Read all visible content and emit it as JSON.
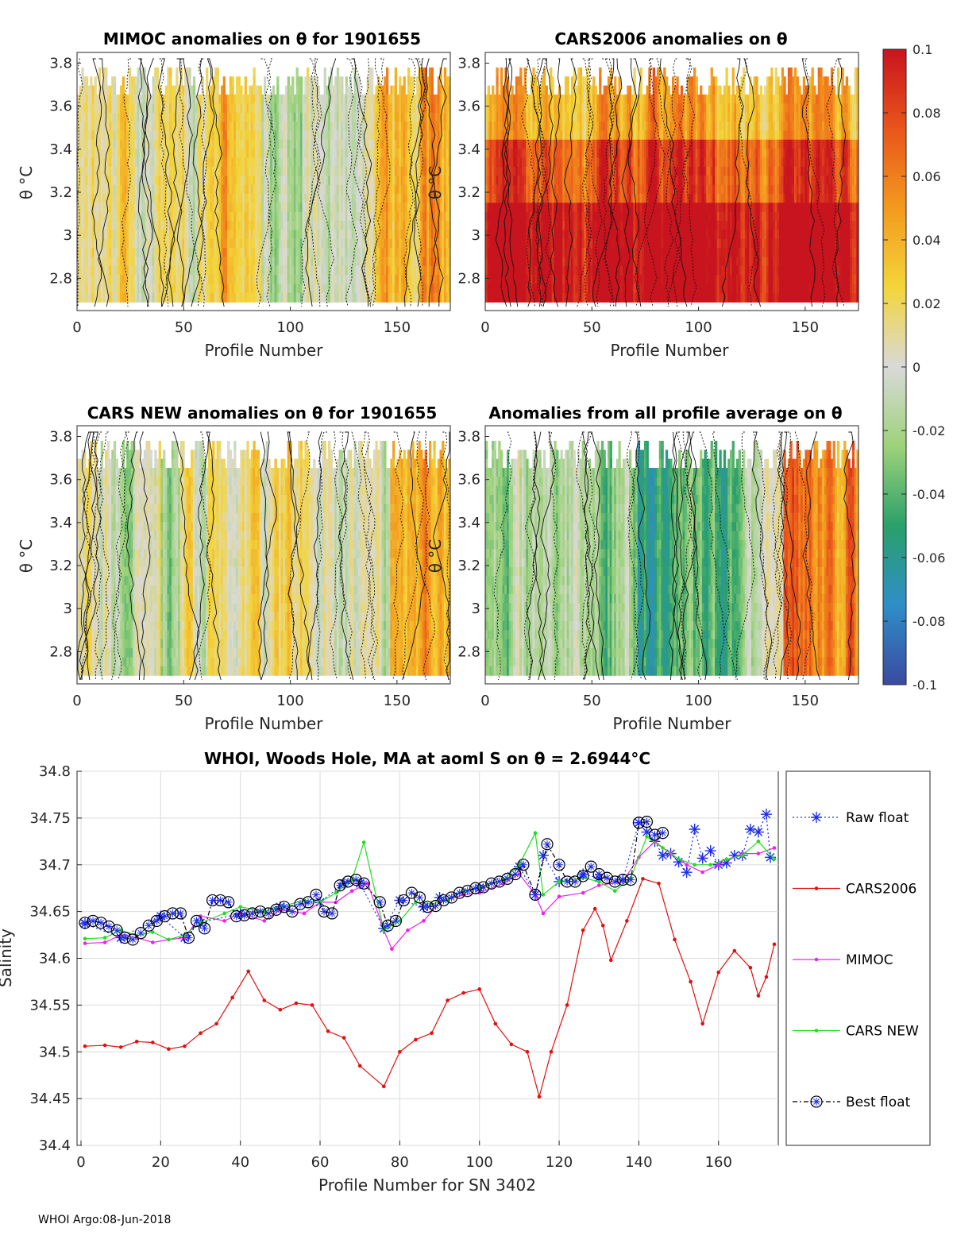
{
  "footer": "WHOI Argo:08-Jun-2018",
  "panels": [
    {
      "id": "mimoc",
      "title": "MIMOC anomalies on θ  for 1901655",
      "xlabel": "Profile Number",
      "ylabel": "θ °C",
      "bias": 0.01,
      "seed": 11
    },
    {
      "id": "cars2006",
      "title": "CARS2006 anomalies on θ",
      "xlabel": "Profile Number",
      "ylabel": "θ °C",
      "bias": 0.06,
      "seed": 23
    },
    {
      "id": "carsnew",
      "title": "CARS NEW anomalies on θ for 1901655",
      "xlabel": "Profile Number",
      "ylabel": "θ °C",
      "bias": 0.0,
      "seed": 37
    },
    {
      "id": "allavg",
      "title": "Anomalies from all profile average on θ",
      "xlabel": "Profile Number",
      "ylabel": "θ °C",
      "bias": -0.01,
      "seed": 53
    }
  ],
  "panel_axes": {
    "xlim": [
      0,
      175
    ],
    "ylim": [
      2.65,
      3.85
    ],
    "xticks": [
      "0",
      "50",
      "100",
      "150"
    ],
    "xtick_values": [
      0,
      50,
      100,
      150
    ],
    "yticks": [
      "2.8",
      "3",
      "3.2",
      "3.4",
      "3.6",
      "3.8"
    ],
    "ytick_values": [
      2.8,
      3.0,
      3.2,
      3.4,
      3.6,
      3.8
    ]
  },
  "colorbar": {
    "range": [
      -0.1,
      0.1
    ],
    "ticks": [
      "0.1",
      "0.08",
      "0.06",
      "0.04",
      "0.02",
      "0",
      "-0.02",
      "-0.04",
      "-0.06",
      "-0.08",
      "-0.1"
    ],
    "tick_values": [
      0.1,
      0.08,
      0.06,
      0.04,
      0.02,
      0,
      -0.02,
      -0.04,
      -0.06,
      -0.08,
      -0.1
    ],
    "stops": [
      "#3b4aa0",
      "#2e8ec8",
      "#2aa06a",
      "#9ed27a",
      "#d9d9d9",
      "#f3d53a",
      "#f39a1e",
      "#e9551c",
      "#c8141e"
    ]
  },
  "chart_data": {
    "type": "line",
    "title": "WHOI, Woods Hole, MA at aoml S on θ = 2.6944°C",
    "xlabel": "Profile Number for SN 3402",
    "ylabel": "Salinity",
    "xlim": [
      -1,
      175
    ],
    "ylim": [
      34.4,
      34.8
    ],
    "xticks": [
      "0",
      "20",
      "40",
      "60",
      "80",
      "100",
      "120",
      "140",
      "160"
    ],
    "xtick_values": [
      0,
      20,
      40,
      60,
      80,
      100,
      120,
      140,
      160
    ],
    "yticks": [
      "34.4",
      "34.45",
      "34.5",
      "34.55",
      "34.6",
      "34.65",
      "34.7",
      "34.75",
      "34.8"
    ],
    "ytick_values": [
      34.4,
      34.45,
      34.5,
      34.55,
      34.6,
      34.65,
      34.7,
      34.75,
      34.8
    ],
    "legend": [
      "Raw float",
      "CARS2006",
      "MIMOC",
      "CARS NEW",
      "Best float"
    ],
    "series": [
      {
        "name": "Raw float",
        "color": "#1f2ee8",
        "x": [
          1,
          10,
          20,
          26,
          30,
          40,
          50,
          60,
          66,
          70,
          76,
          80,
          86,
          90,
          100,
          110,
          114,
          116,
          120,
          126,
          130,
          136,
          140,
          142,
          144,
          146,
          148,
          150,
          152,
          154,
          156,
          158,
          160,
          162,
          164,
          166,
          168,
          170,
          172,
          173
        ],
        "y": [
          34.637,
          34.622,
          34.645,
          34.622,
          34.638,
          34.648,
          34.655,
          34.66,
          34.68,
          34.68,
          34.632,
          34.662,
          34.655,
          34.665,
          34.675,
          34.698,
          34.668,
          34.71,
          34.682,
          34.69,
          34.686,
          34.684,
          34.745,
          34.735,
          34.725,
          34.71,
          34.712,
          34.703,
          34.692,
          34.738,
          34.707,
          34.715,
          34.7,
          34.702,
          34.71,
          34.71,
          34.738,
          34.735,
          34.754,
          34.708
        ]
      },
      {
        "name": "CARS2006",
        "color": "#e01010",
        "x": [
          1,
          6,
          10,
          14,
          18,
          22,
          26,
          30,
          34,
          38,
          42,
          46,
          50,
          54,
          58,
          62,
          66,
          70,
          76,
          80,
          84,
          88,
          92,
          96,
          100,
          104,
          108,
          112,
          115,
          118,
          122,
          126,
          129,
          131,
          133,
          137,
          141,
          145,
          149,
          153,
          156,
          160,
          164,
          168,
          170,
          172,
          174
        ],
        "y": [
          34.506,
          34.507,
          34.505,
          34.511,
          34.51,
          34.503,
          34.506,
          34.52,
          34.53,
          34.558,
          34.586,
          34.555,
          34.545,
          34.552,
          34.55,
          34.522,
          34.515,
          34.485,
          34.463,
          34.5,
          34.513,
          34.52,
          34.555,
          34.563,
          34.567,
          34.53,
          34.508,
          34.5,
          34.452,
          34.5,
          34.55,
          34.63,
          34.653,
          34.635,
          34.598,
          34.64,
          34.685,
          34.68,
          34.62,
          34.575,
          34.53,
          34.585,
          34.608,
          34.59,
          34.56,
          34.58,
          34.615
        ]
      },
      {
        "name": "MIMOC",
        "color": "#ee22ee",
        "x": [
          1,
          6,
          10,
          14,
          18,
          22,
          26,
          30,
          36,
          40,
          46,
          50,
          56,
          60,
          64,
          68,
          72,
          76,
          78,
          82,
          86,
          90,
          96,
          100,
          106,
          110,
          114,
          116,
          120,
          126,
          130,
          136,
          140,
          144,
          148,
          152,
          156,
          160,
          166,
          170,
          174
        ],
        "y": [
          34.616,
          34.617,
          34.625,
          34.622,
          34.617,
          34.62,
          34.622,
          34.645,
          34.64,
          34.648,
          34.64,
          34.652,
          34.648,
          34.66,
          34.66,
          34.672,
          34.68,
          34.63,
          34.61,
          34.63,
          34.64,
          34.66,
          34.668,
          34.67,
          34.68,
          34.69,
          34.668,
          34.648,
          34.666,
          34.67,
          34.678,
          34.682,
          34.708,
          34.725,
          34.712,
          34.7,
          34.692,
          34.7,
          34.712,
          34.712,
          34.718
        ]
      },
      {
        "name": "CARS NEW",
        "color": "#22dd22",
        "x": [
          1,
          6,
          10,
          14,
          18,
          22,
          26,
          30,
          36,
          40,
          46,
          50,
          56,
          60,
          64,
          68,
          71,
          76,
          80,
          84,
          88,
          92,
          96,
          100,
          106,
          110,
          114,
          116,
          120,
          126,
          130,
          134,
          138,
          142,
          146,
          150,
          154,
          158,
          162,
          166,
          170,
          174
        ],
        "y": [
          34.621,
          34.622,
          34.63,
          34.624,
          34.628,
          34.62,
          34.625,
          34.638,
          34.648,
          34.655,
          34.65,
          34.655,
          34.662,
          34.66,
          34.67,
          34.684,
          34.724,
          34.63,
          34.64,
          34.66,
          34.658,
          34.662,
          34.672,
          34.676,
          34.684,
          34.7,
          34.734,
          34.668,
          34.682,
          34.686,
          34.682,
          34.672,
          34.686,
          34.73,
          34.718,
          34.706,
          34.7,
          34.7,
          34.706,
          34.71,
          34.725,
          34.706
        ]
      },
      {
        "name": "Best float",
        "color": "#000000",
        "x": [
          1,
          3,
          5,
          7,
          9,
          11,
          13,
          15,
          17,
          19,
          21,
          23,
          25,
          27,
          29,
          31,
          33,
          35,
          37,
          39,
          41,
          43,
          45,
          47,
          49,
          51,
          53,
          55,
          57,
          59,
          61,
          63,
          65,
          67,
          69,
          71,
          75,
          77,
          79,
          81,
          83,
          85,
          87,
          89,
          91,
          93,
          95,
          97,
          99,
          101,
          103,
          105,
          107,
          109,
          111,
          114,
          117,
          120,
          122,
          124,
          126,
          128,
          130,
          132,
          134,
          136,
          138,
          140,
          142,
          144,
          146
        ],
        "y": [
          34.638,
          34.64,
          34.638,
          34.634,
          34.63,
          34.622,
          34.62,
          34.627,
          34.635,
          34.64,
          34.645,
          34.648,
          34.648,
          34.622,
          34.64,
          34.632,
          34.662,
          34.662,
          34.66,
          34.645,
          34.646,
          34.648,
          34.65,
          34.648,
          34.652,
          34.655,
          34.65,
          34.658,
          34.66,
          34.668,
          34.65,
          34.648,
          34.678,
          34.682,
          34.684,
          34.68,
          34.66,
          34.635,
          34.64,
          34.662,
          34.67,
          34.665,
          34.655,
          34.656,
          34.662,
          34.665,
          34.67,
          34.672,
          34.675,
          34.676,
          34.68,
          34.682,
          34.685,
          34.69,
          34.7,
          34.668,
          34.722,
          34.7,
          34.682,
          34.682,
          34.688,
          34.698,
          34.69,
          34.686,
          34.682,
          34.684,
          34.684,
          34.745,
          34.746,
          34.732,
          34.734
        ]
      }
    ]
  }
}
